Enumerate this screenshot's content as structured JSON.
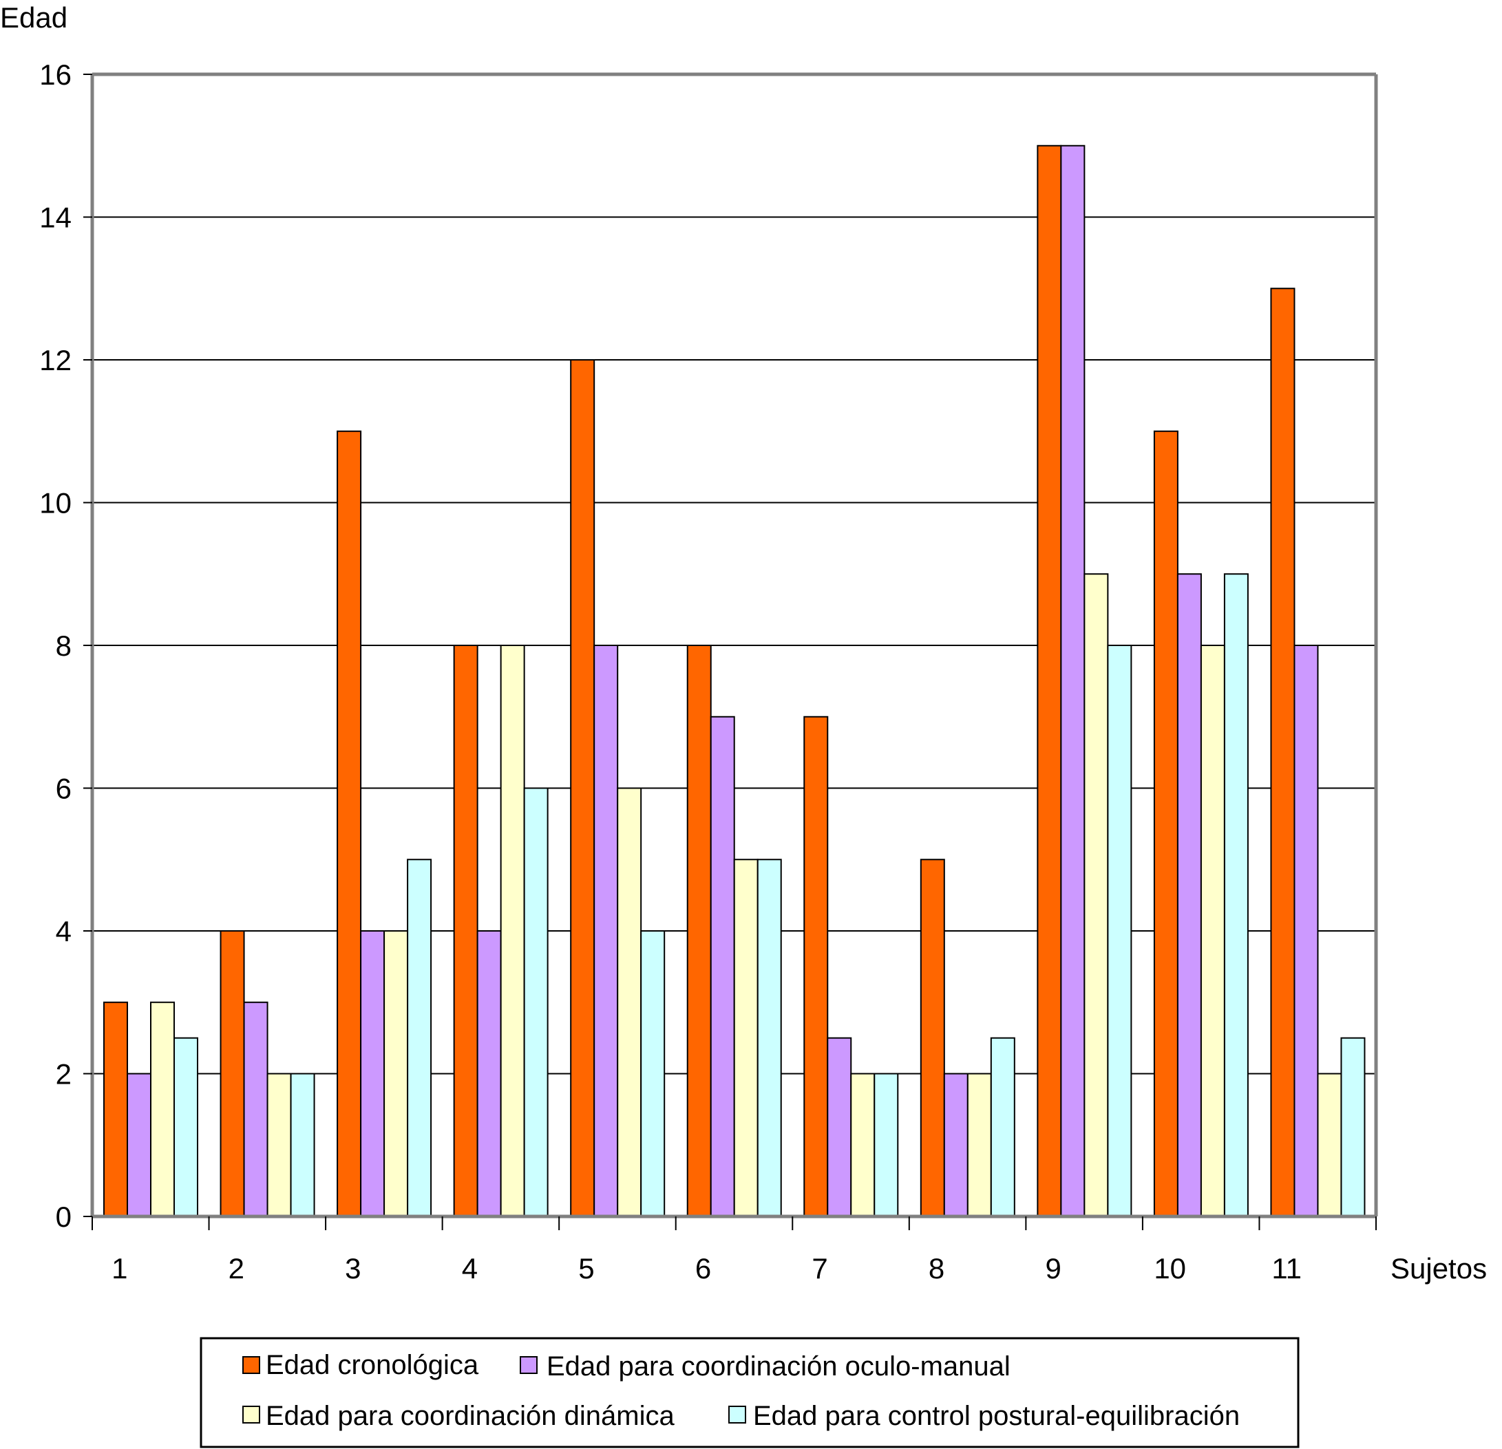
{
  "chart_data": {
    "type": "bar",
    "ylabel": "Edad",
    "xlabel": "Sujetos",
    "ylim": [
      0,
      16
    ],
    "yticks": [
      0,
      2,
      4,
      6,
      8,
      10,
      12,
      14,
      16
    ],
    "grid": true,
    "legend_position": "bottom",
    "categories": [
      "1",
      "2",
      "3",
      "4",
      "5",
      "6",
      "7",
      "8",
      "9",
      "10",
      "11"
    ],
    "series": [
      {
        "name": "Edad cronológica",
        "color": "#ff6600",
        "values": [
          3,
          4,
          11,
          8,
          12,
          8,
          7,
          5,
          15,
          11,
          13
        ]
      },
      {
        "name": "Edad para coordinación oculo-manual",
        "color": "#cc99ff",
        "values": [
          2,
          3,
          4,
          4,
          8,
          7,
          2.5,
          2,
          15,
          9,
          8
        ]
      },
      {
        "name": "Edad para coordinación dinámica",
        "color": "#ffffcc",
        "values": [
          3,
          2,
          4,
          8,
          6,
          5,
          2,
          2,
          9,
          8,
          2
        ]
      },
      {
        "name": "Edad para control postural-equilibración",
        "color": "#ccffff",
        "values": [
          2.5,
          2,
          5,
          6,
          4,
          5,
          2,
          2.5,
          8,
          9,
          2.5
        ]
      }
    ]
  }
}
